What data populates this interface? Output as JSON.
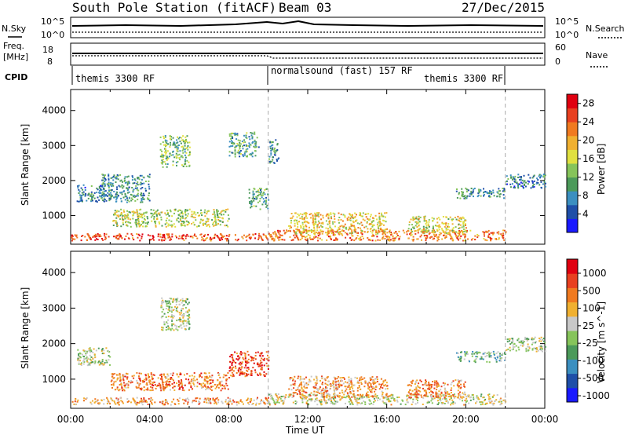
{
  "header": {
    "station": "South Pole Station (fitACF)",
    "beam": "Beam 03",
    "date": "27/Dec/2015"
  },
  "noise_panel": {
    "left_label": "N.Sky",
    "left_ticks": [
      "10^5",
      "10^0"
    ],
    "right_label": "N.Search",
    "right_ticks": [
      "10^5",
      "10^0"
    ]
  },
  "freq_panel": {
    "left_label_line1": "Freq.",
    "left_label_line2": "[MHz]",
    "left_ticks": [
      "18",
      "8"
    ],
    "right_label": "Nave",
    "right_ticks": [
      "60",
      "0"
    ]
  },
  "cpid_panel": {
    "label": "CPID",
    "segments": [
      {
        "name": "themis 3300 RF",
        "start_hour": 0,
        "end_hour": 10
      },
      {
        "name": "normalsound (fast) 157 RF",
        "start_hour": 10,
        "end_hour": 22
      },
      {
        "name": "themis 3300 RF",
        "start_hour": 22,
        "end_hour": 24
      }
    ]
  },
  "chart_data": [
    {
      "type": "heatmap",
      "title": "",
      "xlabel": "Time UT",
      "ylabel": "Slant Range [km]",
      "x_ticks": [
        "00:00",
        "04:00",
        "08:00",
        "12:00",
        "16:00",
        "20:00",
        "00:00"
      ],
      "xlim_hours": [
        0,
        24
      ],
      "y_ticks": [
        1000,
        2000,
        3000,
        4000
      ],
      "ylim": [
        180,
        4600
      ],
      "colorbar": {
        "label": "Power [dB]",
        "ticks": [
          "4",
          "8",
          "12",
          "16",
          "20",
          "24",
          "28"
        ],
        "range": [
          0,
          30
        ],
        "colors": [
          "#1a1aff",
          "#1f4fa8",
          "#3b8fc0",
          "#4c9a5a",
          "#86c45a",
          "#e0e040",
          "#f0b030",
          "#f07a20",
          "#e84020",
          "#e00010"
        ]
      },
      "regions": [
        {
          "x": [
            0,
            10
          ],
          "y": [
            300,
            500
          ],
          "level": 0.85
        },
        {
          "x": [
            10,
            22
          ],
          "y": [
            300,
            600
          ],
          "level": 0.75
        },
        {
          "x": [
            0.3,
            1.7
          ],
          "y": [
            1400,
            1900
          ],
          "level": 0.25
        },
        {
          "x": [
            1.5,
            4
          ],
          "y": [
            1400,
            2200
          ],
          "level": 0.3
        },
        {
          "x": [
            4.5,
            6
          ],
          "y": [
            2400,
            3300
          ],
          "level": 0.4
        },
        {
          "x": [
            8,
            9.5
          ],
          "y": [
            2700,
            3400
          ],
          "level": 0.35
        },
        {
          "x": [
            9,
            10
          ],
          "y": [
            1200,
            1800
          ],
          "level": 0.35
        },
        {
          "x": [
            10,
            10.5
          ],
          "y": [
            2500,
            3200
          ],
          "level": 0.3
        },
        {
          "x": [
            2,
            8
          ],
          "y": [
            700,
            1200
          ],
          "level": 0.5
        },
        {
          "x": [
            11,
            16
          ],
          "y": [
            500,
            1100
          ],
          "level": 0.6
        },
        {
          "x": [
            17,
            20
          ],
          "y": [
            500,
            1000
          ],
          "level": 0.55
        },
        {
          "x": [
            19.5,
            22
          ],
          "y": [
            1500,
            1800
          ],
          "level": 0.3
        },
        {
          "x": [
            22,
            24
          ],
          "y": [
            1800,
            2200
          ],
          "level": 0.25
        }
      ],
      "boundaries_hours": [
        10,
        22
      ]
    },
    {
      "type": "heatmap",
      "title": "",
      "xlabel": "Time UT",
      "ylabel": "Slant Range [km]",
      "x_ticks": [
        "00:00",
        "04:00",
        "08:00",
        "12:00",
        "16:00",
        "20:00",
        "00:00"
      ],
      "xlim_hours": [
        0,
        24
      ],
      "y_ticks": [
        1000,
        2000,
        3000,
        4000
      ],
      "ylim": [
        180,
        4600
      ],
      "colorbar": {
        "label": "Velocity [m s^-1]",
        "ticks": [
          "1000",
          "500",
          "100",
          "25",
          "-25",
          "-100",
          "-500",
          "-1000"
        ],
        "colors": [
          "#1a1aff",
          "#1f4fa8",
          "#3b8fc0",
          "#4c9a5a",
          "#86c45a",
          "#c8c8c8",
          "#f0b030",
          "#f07a20",
          "#e84020",
          "#e00010"
        ]
      },
      "regions": [
        {
          "x": [
            0,
            10
          ],
          "y": [
            300,
            500
          ],
          "level": 0.68
        },
        {
          "x": [
            10,
            22
          ],
          "y": [
            300,
            600
          ],
          "level": 0.55
        },
        {
          "x": [
            0.3,
            2
          ],
          "y": [
            1400,
            1900
          ],
          "level": 0.5
        },
        {
          "x": [
            4.5,
            6
          ],
          "y": [
            2400,
            3300
          ],
          "level": 0.5
        },
        {
          "x": [
            8,
            10
          ],
          "y": [
            1100,
            1800
          ],
          "level": 0.85
        },
        {
          "x": [
            2,
            8
          ],
          "y": [
            700,
            1200
          ],
          "level": 0.75
        },
        {
          "x": [
            11,
            16
          ],
          "y": [
            500,
            1100
          ],
          "level": 0.7
        },
        {
          "x": [
            17,
            20
          ],
          "y": [
            500,
            1000
          ],
          "level": 0.72
        },
        {
          "x": [
            19.5,
            22
          ],
          "y": [
            1500,
            1800
          ],
          "level": 0.42
        },
        {
          "x": [
            22,
            24
          ],
          "y": [
            1800,
            2200
          ],
          "level": 0.5
        }
      ],
      "boundaries_hours": [
        10,
        22
      ]
    }
  ]
}
